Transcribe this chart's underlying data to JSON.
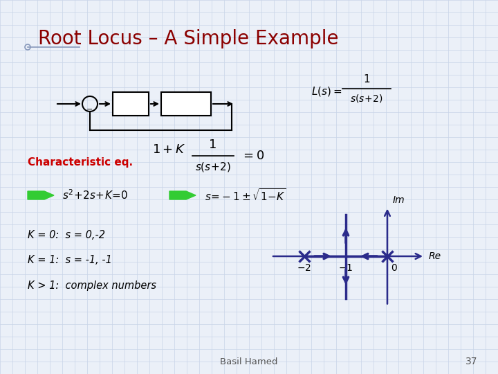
{
  "title": "Root Locus – A Simple Example",
  "title_color": "#8B0000",
  "title_fontsize": 20,
  "bg_color": "#EBF0F8",
  "grid_color": "#C8D4E8",
  "char_eq_label": "Characteristic eq.",
  "char_eq_color": "#CC0000",
  "bottom_label": "Basil Hamed",
  "bottom_number": "37",
  "arrow_color": "#2B2B8B",
  "locus_color": "#2B2B8B"
}
